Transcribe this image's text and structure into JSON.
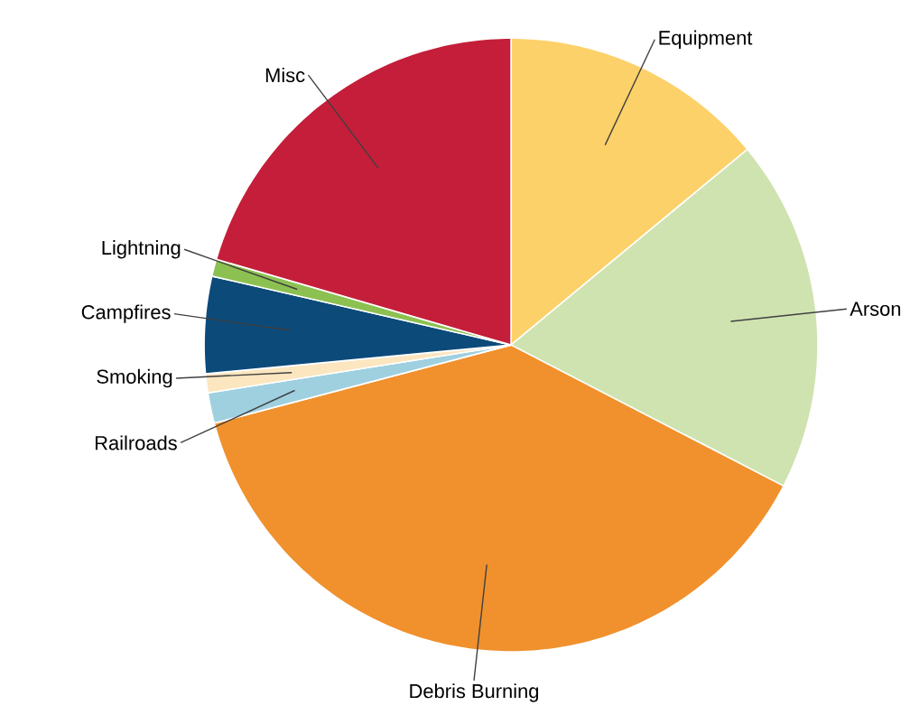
{
  "chart_data": {
    "type": "pie",
    "categories": [
      "Equipment",
      "Arson",
      "Debris Burning",
      "Railroads",
      "Smoking",
      "Campfires",
      "Lightning",
      "Misc"
    ],
    "values": [
      14,
      18.6,
      38.3,
      1.6,
      1,
      5.1,
      0.9,
      20.5
    ],
    "colors": [
      "#fdd16a",
      "#cfe3b0",
      "#f0912d",
      "#9fd0e0",
      "#fbe6c0",
      "#0c4a7a",
      "#8cc152",
      "#c41e3a"
    ]
  }
}
